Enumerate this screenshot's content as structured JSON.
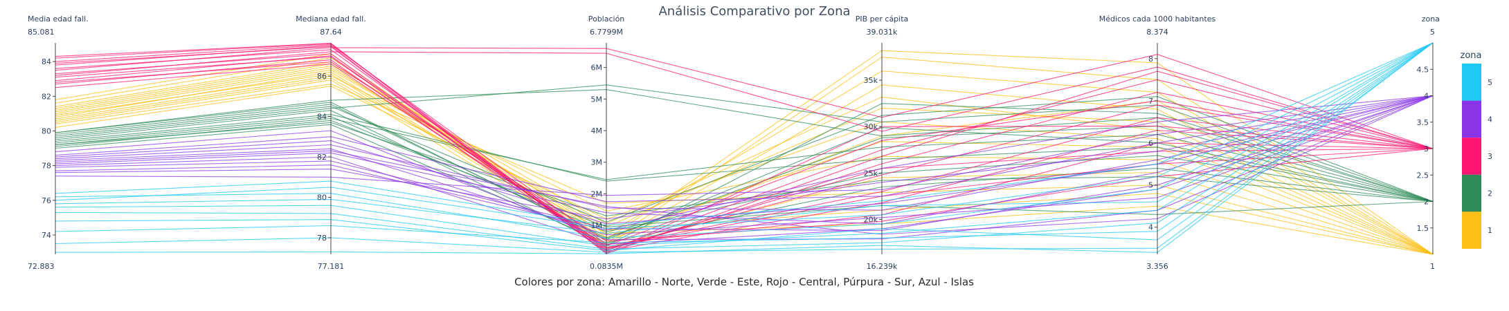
{
  "chart_data": {
    "type": "parallel_coordinates",
    "title": "Análisis Comparativo por Zona",
    "subtitle": "Colores por zona: Amarillo - Norte, Verde - Este, Rojo - Central, Púrpura - Sur, Azul - Islas",
    "color_dimension": "zona",
    "colors": {
      "1": "#fbbf16",
      "2": "#2e8b57",
      "3": "#fd1572",
      "4": "#8a35e6",
      "5": "#1fc8f3"
    },
    "dimensions": [
      {
        "label": "Media edad fall.",
        "range": [
          72.883,
          85.081
        ],
        "range_labels": [
          "72.883",
          "85.081"
        ],
        "ticks": [
          {
            "v": 74,
            "t": "74"
          },
          {
            "v": 76,
            "t": "76"
          },
          {
            "v": 78,
            "t": "78"
          },
          {
            "v": 80,
            "t": "80"
          },
          {
            "v": 82,
            "t": "82"
          },
          {
            "v": 84,
            "t": "84"
          }
        ]
      },
      {
        "label": "Mediana edad fall.",
        "range": [
          77.181,
          87.64
        ],
        "range_labels": [
          "77.181",
          "87.64"
        ],
        "ticks": [
          {
            "v": 78,
            "t": "78"
          },
          {
            "v": 80,
            "t": "80"
          },
          {
            "v": 82,
            "t": "82"
          },
          {
            "v": 84,
            "t": "84"
          },
          {
            "v": 86,
            "t": "86"
          }
        ]
      },
      {
        "label": "Población",
        "range": [
          0.0835,
          6.7799
        ],
        "range_labels": [
          "0.0835M",
          "6.7799M"
        ],
        "ticks": [
          {
            "v": 1,
            "t": "1M"
          },
          {
            "v": 2,
            "t": "2M"
          },
          {
            "v": 3,
            "t": "3M"
          },
          {
            "v": 4,
            "t": "4M"
          },
          {
            "v": 5,
            "t": "5M"
          },
          {
            "v": 6,
            "t": "6M"
          }
        ]
      },
      {
        "label": "PIB per cápita",
        "range": [
          16.239,
          39.031
        ],
        "range_labels": [
          "16.239k",
          "39.031k"
        ],
        "ticks": [
          {
            "v": 20,
            "t": "20k"
          },
          {
            "v": 25,
            "t": "25k"
          },
          {
            "v": 30,
            "t": "30k"
          },
          {
            "v": 35,
            "t": "35k"
          }
        ]
      },
      {
        "label": "Médicos cada 1000 habitantes",
        "range": [
          3.356,
          8.374
        ],
        "range_labels": [
          "3.356",
          "8.374"
        ],
        "ticks": [
          {
            "v": 4,
            "t": "4"
          },
          {
            "v": 5,
            "t": "5"
          },
          {
            "v": 6,
            "t": "6"
          },
          {
            "v": 7,
            "t": "7"
          },
          {
            "v": 8,
            "t": "8"
          }
        ]
      },
      {
        "label": "zona",
        "range": [
          1,
          5
        ],
        "range_labels": [
          "1",
          "5"
        ],
        "ticks": [
          {
            "v": 1.5,
            "t": "1.5"
          },
          {
            "v": 2,
            "t": "2"
          },
          {
            "v": 2.5,
            "t": "2.5"
          },
          {
            "v": 3,
            "t": "3"
          },
          {
            "v": 3.5,
            "t": "3.5"
          },
          {
            "v": 4,
            "t": "4"
          },
          {
            "v": 4.5,
            "t": "4.5"
          }
        ]
      }
    ],
    "colorbar": {
      "title": "zona",
      "ticks": [
        {
          "v": 1,
          "t": "1"
        },
        {
          "v": 2,
          "t": "2"
        },
        {
          "v": 3,
          "t": "3"
        },
        {
          "v": 4,
          "t": "4"
        },
        {
          "v": 5,
          "t": "5"
        }
      ]
    },
    "lines": [
      {
        "zona": 1,
        "values": [
          81.2,
          86.5,
          0.55,
          38.2,
          7.9,
          1
        ]
      },
      {
        "zona": 1,
        "values": [
          80.9,
          86.1,
          0.42,
          37.5,
          7.5,
          1
        ]
      },
      {
        "zona": 1,
        "values": [
          81.6,
          86.9,
          0.71,
          36.0,
          7.2,
          1
        ]
      },
      {
        "zona": 1,
        "values": [
          80.5,
          85.8,
          0.38,
          34.5,
          6.8,
          1
        ]
      },
      {
        "zona": 1,
        "values": [
          81.0,
          86.3,
          0.95,
          32.0,
          6.5,
          1
        ]
      },
      {
        "zona": 1,
        "values": [
          80.2,
          85.5,
          1.2,
          30.5,
          6.1,
          1
        ]
      },
      {
        "zona": 1,
        "values": [
          81.4,
          86.7,
          0.62,
          28.4,
          5.9,
          1
        ]
      },
      {
        "zona": 1,
        "values": [
          80.7,
          86.0,
          1.45,
          26.8,
          5.6,
          1
        ]
      },
      {
        "zona": 1,
        "values": [
          81.8,
          87.1,
          0.3,
          24.5,
          5.3,
          1
        ]
      },
      {
        "zona": 1,
        "values": [
          80.4,
          85.6,
          1.7,
          22.9,
          5.0,
          1
        ]
      },
      {
        "zona": 1,
        "values": [
          81.1,
          86.4,
          0.85,
          21.0,
          4.8,
          1
        ]
      },
      {
        "zona": 1,
        "values": [
          80.8,
          86.2,
          0.5,
          29.0,
          7.0,
          1
        ]
      },
      {
        "zona": 1,
        "values": [
          81.3,
          86.6,
          1.05,
          33.2,
          6.3,
          1
        ]
      },
      {
        "zona": 1,
        "values": [
          80.6,
          85.9,
          0.75,
          19.5,
          4.5,
          1
        ]
      },
      {
        "zona": 2,
        "values": [
          79.6,
          84.4,
          5.45,
          30.5,
          6.9,
          2
        ]
      },
      {
        "zona": 2,
        "values": [
          79.9,
          84.8,
          5.3,
          29.0,
          6.6,
          2
        ]
      },
      {
        "zona": 2,
        "values": [
          79.2,
          83.9,
          2.45,
          27.8,
          6.2,
          2
        ]
      },
      {
        "zona": 2,
        "values": [
          79.4,
          84.1,
          2.4,
          26.5,
          5.9,
          2
        ]
      },
      {
        "zona": 2,
        "values": [
          79.8,
          84.6,
          0.6,
          28.8,
          6.4,
          2
        ]
      },
      {
        "zona": 2,
        "values": [
          79.0,
          83.6,
          0.45,
          23.5,
          5.4,
          2
        ]
      },
      {
        "zona": 2,
        "values": [
          79.7,
          84.5,
          1.1,
          31.2,
          7.1,
          2
        ]
      },
      {
        "zona": 2,
        "values": [
          79.3,
          84.0,
          0.8,
          25.0,
          5.7,
          2
        ]
      },
      {
        "zona": 2,
        "values": [
          79.5,
          84.3,
          0.35,
          32.5,
          6.7,
          2
        ]
      },
      {
        "zona": 2,
        "values": [
          79.1,
          83.8,
          0.95,
          21.5,
          4.3,
          2
        ]
      },
      {
        "zona": 2,
        "values": [
          79.9,
          84.7,
          0.55,
          29.9,
          6.0,
          2
        ]
      },
      {
        "zona": 2,
        "values": [
          79.2,
          83.7,
          1.3,
          24.2,
          5.2,
          2
        ]
      },
      {
        "zona": 3,
        "values": [
          83.5,
          87.4,
          6.6,
          31.0,
          8.1,
          3
        ]
      },
      {
        "zona": 3,
        "values": [
          83.2,
          87.2,
          6.45,
          29.5,
          7.8,
          3
        ]
      },
      {
        "zona": 3,
        "values": [
          84.2,
          87.6,
          0.2,
          27.5,
          7.5,
          3
        ]
      },
      {
        "zona": 3,
        "values": [
          83.8,
          87.5,
          0.15,
          26.0,
          7.2,
          3
        ]
      },
      {
        "zona": 3,
        "values": [
          82.9,
          87.0,
          0.25,
          24.8,
          6.9,
          3
        ]
      },
      {
        "zona": 3,
        "values": [
          83.6,
          87.3,
          0.3,
          23.0,
          6.6,
          3
        ]
      },
      {
        "zona": 3,
        "values": [
          82.7,
          86.8,
          0.18,
          21.8,
          6.3,
          3
        ]
      },
      {
        "zona": 3,
        "values": [
          84.0,
          87.55,
          0.4,
          20.5,
          6.0,
          3
        ]
      },
      {
        "zona": 3,
        "values": [
          83.3,
          87.1,
          0.22,
          25.5,
          5.8,
          3
        ]
      },
      {
        "zona": 3,
        "values": [
          82.5,
          86.6,
          0.35,
          28.5,
          7.0,
          3
        ]
      },
      {
        "zona": 3,
        "values": [
          83.9,
          87.45,
          0.12,
          30.0,
          6.4,
          3
        ]
      },
      {
        "zona": 3,
        "values": [
          83.1,
          86.95,
          0.28,
          22.5,
          5.5,
          3
        ]
      },
      {
        "zona": 3,
        "values": [
          82.8,
          86.7,
          0.5,
          19.8,
          5.2,
          3
        ]
      },
      {
        "zona": 3,
        "values": [
          84.3,
          87.62,
          0.1,
          26.8,
          7.7,
          3
        ]
      },
      {
        "zona": 4,
        "values": [
          78.4,
          82.6,
          1.55,
          21.0,
          5.6,
          4
        ]
      },
      {
        "zona": 4,
        "values": [
          78.1,
          82.2,
          1.4,
          19.5,
          5.3,
          4
        ]
      },
      {
        "zona": 4,
        "values": [
          78.6,
          83.0,
          1.75,
          22.5,
          6.0,
          4
        ]
      },
      {
        "zona": 4,
        "values": [
          77.9,
          81.8,
          0.9,
          18.8,
          5.0,
          4
        ]
      },
      {
        "zona": 4,
        "values": [
          78.3,
          82.4,
          0.7,
          20.2,
          4.7,
          4
        ]
      },
      {
        "zona": 4,
        "values": [
          77.6,
          81.4,
          1.2,
          24.0,
          5.8,
          4
        ]
      },
      {
        "zona": 4,
        "values": [
          78.8,
          83.3,
          0.55,
          17.9,
          4.4,
          4
        ]
      },
      {
        "zona": 4,
        "values": [
          77.4,
          81.0,
          1.95,
          23.2,
          6.2,
          4
        ]
      },
      {
        "zona": 4,
        "values": [
          78.0,
          82.0,
          0.4,
          19.0,
          4.9,
          4
        ]
      },
      {
        "zona": 4,
        "values": [
          78.5,
          82.8,
          1.05,
          21.7,
          5.5,
          4
        ]
      },
      {
        "zona": 4,
        "values": [
          77.7,
          81.6,
          0.85,
          25.5,
          6.5,
          4
        ]
      },
      {
        "zona": 4,
        "values": [
          78.2,
          82.3,
          1.6,
          18.4,
          4.2,
          4
        ]
      },
      {
        "zona": 5,
        "values": [
          76.2,
          80.2,
          0.6,
          19.5,
          4.9,
          5
        ]
      },
      {
        "zona": 5,
        "values": [
          75.6,
          79.6,
          0.35,
          18.5,
          4.4,
          5
        ]
      },
      {
        "zona": 5,
        "values": [
          76.0,
          80.5,
          0.9,
          20.5,
          5.2,
          5
        ]
      },
      {
        "zona": 5,
        "values": [
          75.3,
          79.2,
          0.25,
          17.5,
          4.1,
          5
        ]
      },
      {
        "zona": 5,
        "values": [
          73.5,
          78.0,
          0.15,
          16.8,
          3.5,
          5
        ]
      },
      {
        "zona": 5,
        "values": [
          73.0,
          77.3,
          0.1,
          17.2,
          3.4,
          5
        ]
      },
      {
        "zona": 5,
        "values": [
          74.2,
          78.6,
          0.45,
          18.0,
          3.9,
          5
        ]
      },
      {
        "zona": 5,
        "values": [
          75.8,
          79.9,
          0.75,
          21.5,
          4.6,
          5
        ]
      },
      {
        "zona": 5,
        "values": [
          74.8,
          78.9,
          0.2,
          19.0,
          3.7,
          5
        ]
      },
      {
        "zona": 5,
        "values": [
          76.4,
          80.8,
          1.0,
          22.0,
          5.5,
          5
        ]
      }
    ]
  }
}
